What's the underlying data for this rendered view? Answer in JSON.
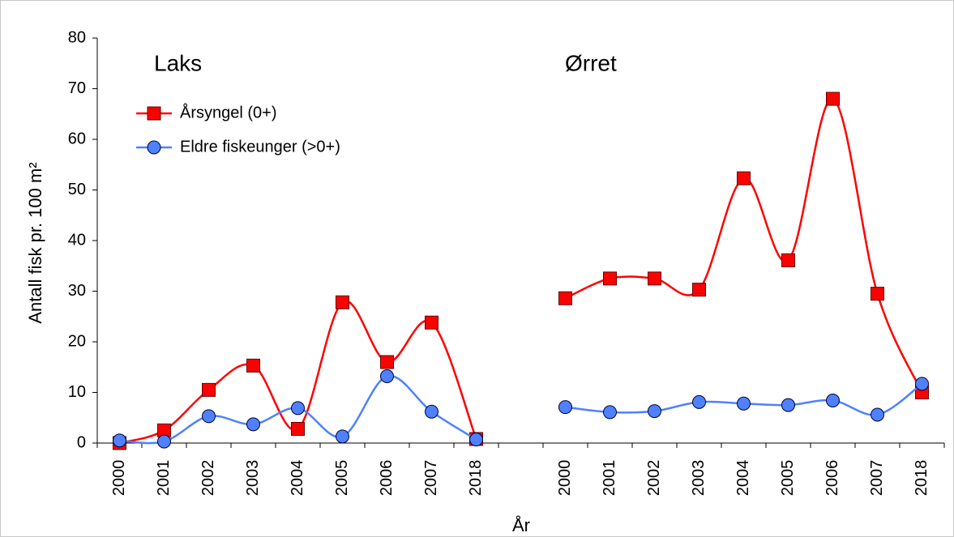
{
  "chart_data": {
    "type": "line",
    "annotations": [
      "Laks",
      "Ørret"
    ],
    "xlabel": "År",
    "ylabel": "Antall fisk pr. 100 m²",
    "categories": [
      "2000",
      "2001",
      "2002",
      "2003",
      "2004",
      "2005",
      "2006",
      "2007",
      "2018",
      null,
      "2000",
      "2001",
      "2002",
      "2003",
      "2004",
      "2005",
      "2006",
      "2007",
      "2018"
    ],
    "series": [
      {
        "name": "Årsyngel (0+)",
        "color": "#ff0000",
        "marker": "square",
        "values": [
          0,
          2.5,
          10.5,
          15.3,
          2.8,
          27.8,
          16,
          23.8,
          0.8,
          null,
          28.6,
          32.5,
          32.5,
          30.3,
          52.3,
          36.1,
          68,
          29.5,
          10
        ]
      },
      {
        "name": "Eldre fiskeunger (>0+)",
        "color": "#4f81ff",
        "marker": "circle",
        "values": [
          0.5,
          0.3,
          5.3,
          3.7,
          6.9,
          1.3,
          13.2,
          6.2,
          0.7,
          null,
          7.1,
          6.1,
          6.3,
          8.1,
          7.8,
          7.5,
          8.4,
          5.6,
          11.7
        ]
      }
    ],
    "ylim": [
      0,
      80
    ],
    "yticks": [
      0,
      10,
      20,
      30,
      40,
      50,
      60,
      70,
      80
    ],
    "grid": false,
    "legend": "top-left"
  }
}
